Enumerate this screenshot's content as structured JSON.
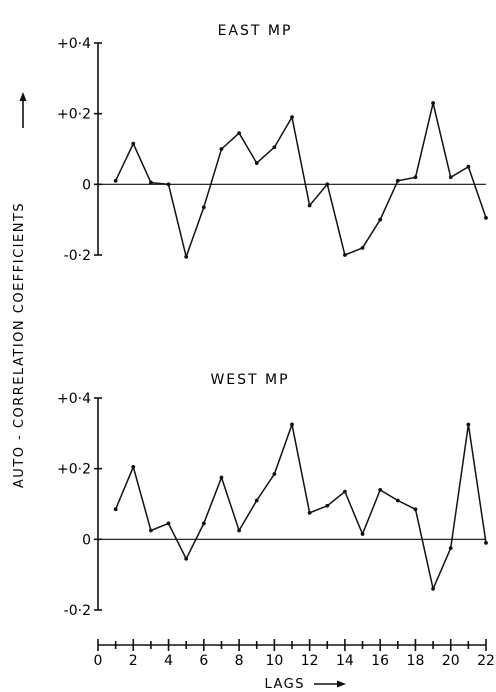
{
  "chart_data": {
    "type": "line",
    "ylabel": "AUTO - CORRELATION COEFFICIENTS",
    "xlabel": "LAGS",
    "x_ticks": [
      "0",
      "2",
      "4",
      "6",
      "8",
      "10",
      "12",
      "14",
      "16",
      "18",
      "20",
      "22"
    ],
    "xlim": [
      0,
      22
    ],
    "panels": [
      {
        "title": "EAST MP",
        "ylim": [
          -0.2,
          0.4
        ],
        "y_ticks": [
          {
            "value": 0.4,
            "label": "+0·4"
          },
          {
            "value": 0.2,
            "label": "+0·2"
          },
          {
            "value": 0.0,
            "label": "0"
          },
          {
            "value": -0.2,
            "label": "-0·2"
          }
        ],
        "x": [
          1,
          2,
          3,
          4,
          5,
          6,
          7,
          8,
          9,
          10,
          11,
          12,
          13,
          14,
          15,
          16,
          17,
          18,
          19,
          20,
          21,
          22
        ],
        "values": [
          0.01,
          0.115,
          0.005,
          0.0,
          -0.205,
          -0.065,
          0.1,
          0.145,
          0.06,
          0.105,
          0.19,
          -0.06,
          0.0,
          -0.2,
          -0.18,
          -0.1,
          0.01,
          0.02,
          0.23,
          0.02,
          0.05,
          -0.095
        ]
      },
      {
        "title": "WEST MP",
        "ylim": [
          -0.2,
          0.4
        ],
        "y_ticks": [
          {
            "value": 0.4,
            "label": "+0·4"
          },
          {
            "value": 0.2,
            "label": "+0·2"
          },
          {
            "value": 0.0,
            "label": "0"
          },
          {
            "value": -0.2,
            "label": "-0·2"
          }
        ],
        "x": [
          1,
          2,
          3,
          4,
          5,
          6,
          7,
          8,
          9,
          10,
          11,
          12,
          13,
          14,
          15,
          16,
          17,
          18,
          19,
          20,
          21,
          22
        ],
        "values": [
          0.085,
          0.205,
          0.025,
          0.045,
          -0.055,
          0.045,
          0.175,
          0.025,
          0.11,
          0.185,
          0.325,
          0.075,
          0.095,
          0.135,
          0.015,
          0.14,
          0.11,
          0.085,
          -0.14,
          -0.025,
          0.325,
          -0.01
        ]
      }
    ]
  }
}
